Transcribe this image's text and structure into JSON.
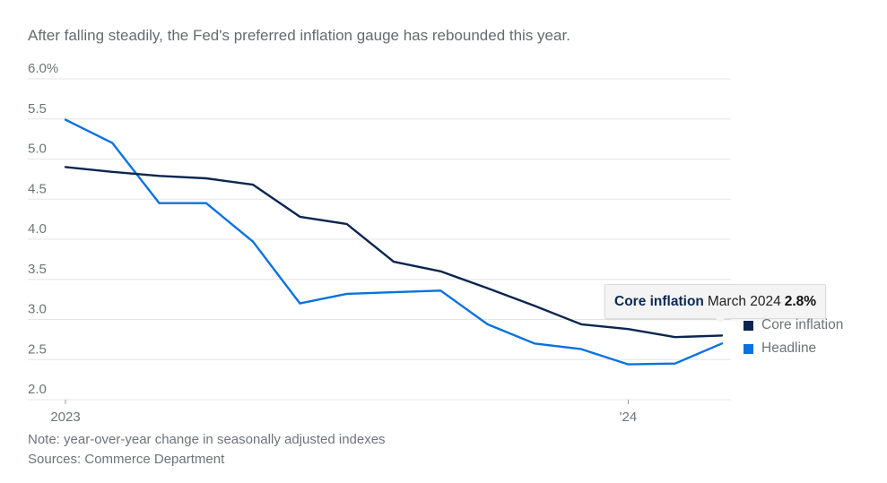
{
  "header": {
    "subtitle": "After falling steadily, the Fed's preferred inflation gauge has rebounded this year."
  },
  "footer": {
    "note": "Note: year-over-year change in seasonally adjusted indexes",
    "sources": "Sources: Commerce Department"
  },
  "tooltip": {
    "series": "Core inflation",
    "date": "March 2024",
    "value": "2.8%"
  },
  "legend": [
    {
      "label": "Core inflation",
      "color": "#0b2550"
    },
    {
      "label": "Headline",
      "color": "#0a72e0"
    }
  ],
  "chart_data": {
    "type": "line",
    "title": "After falling steadily, the Fed's preferred inflation gauge has rebounded this year.",
    "xlabel": "",
    "ylabel": "",
    "x": [
      "2023-01",
      "2023-02",
      "2023-03",
      "2023-04",
      "2023-05",
      "2023-06",
      "2023-07",
      "2023-08",
      "2023-09",
      "2023-10",
      "2023-11",
      "2023-12",
      "2024-01",
      "2024-02",
      "2024-03"
    ],
    "x_ticks": [
      {
        "index": 0,
        "label": "2023"
      },
      {
        "index": 12,
        "label": "'24"
      }
    ],
    "ylim": [
      2.0,
      6.0
    ],
    "y_ticks": [
      {
        "value": 2.0,
        "label": "2.0"
      },
      {
        "value": 2.5,
        "label": "2.5"
      },
      {
        "value": 3.0,
        "label": "3.0"
      },
      {
        "value": 3.5,
        "label": "3.5"
      },
      {
        "value": 4.0,
        "label": "4.0"
      },
      {
        "value": 4.5,
        "label": "4.5"
      },
      {
        "value": 5.0,
        "label": "5.0"
      },
      {
        "value": 5.5,
        "label": "5.5"
      },
      {
        "value": 6.0,
        "label": "6.0%"
      }
    ],
    "grid": true,
    "legend_position": "right",
    "series": [
      {
        "name": "Core inflation",
        "color": "#0b2550",
        "values": [
          4.9,
          4.84,
          4.79,
          4.76,
          4.68,
          4.28,
          4.19,
          3.72,
          3.6,
          3.39,
          3.17,
          2.94,
          2.88,
          2.78,
          2.8
        ]
      },
      {
        "name": "Headline",
        "color": "#0a72e0",
        "values": [
          5.49,
          5.2,
          4.45,
          4.45,
          3.97,
          3.2,
          3.32,
          3.34,
          3.36,
          2.94,
          2.7,
          2.63,
          2.44,
          2.45,
          2.7
        ]
      }
    ],
    "footnote": "Note: year-over-year change in seasonally adjusted indexes",
    "source": "Sources: Commerce Department"
  }
}
